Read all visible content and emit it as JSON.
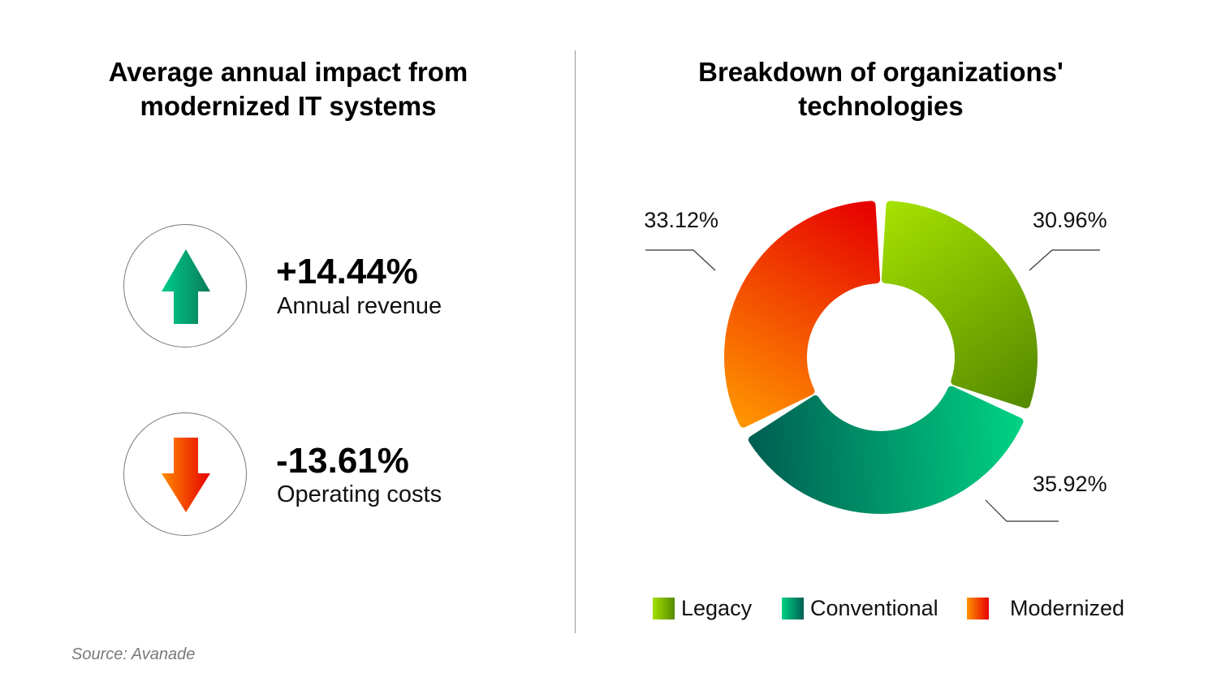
{
  "left_panel": {
    "title_line1": "Average annual impact from",
    "title_line2": "modernized IT systems",
    "kpis": [
      {
        "value": "+14.44%",
        "label": "Annual revenue",
        "direction": "up",
        "icon": "arrow-up-icon"
      },
      {
        "value": "-13.61%",
        "label": "Operating costs",
        "direction": "down",
        "icon": "arrow-down-icon"
      }
    ]
  },
  "right_panel": {
    "title_line1": "Breakdown of organizations'",
    "title_line2": "technologies"
  },
  "chart_data": {
    "type": "pie",
    "variant": "donut",
    "title": "Breakdown of organizations' technologies",
    "categories": [
      "Legacy",
      "Conventional",
      "Modernized"
    ],
    "values": [
      30.96,
      35.92,
      33.12
    ],
    "labels": [
      "30.96%",
      "35.92%",
      "33.12%"
    ],
    "colors": {
      "Legacy": [
        "#a4e000",
        "#568a00"
      ],
      "Conventional": [
        "#00d184",
        "#005f52"
      ],
      "Modernized": [
        "#ff9400",
        "#e60000"
      ]
    },
    "start_angle_deg": 0,
    "direction": "clockwise",
    "legend_position": "bottom"
  },
  "source": "Source: Avanade",
  "colors": {
    "up_arrow": [
      "#00cc8c",
      "#0a7a58"
    ],
    "down_arrow": [
      "#ff8a00",
      "#e60000"
    ]
  }
}
